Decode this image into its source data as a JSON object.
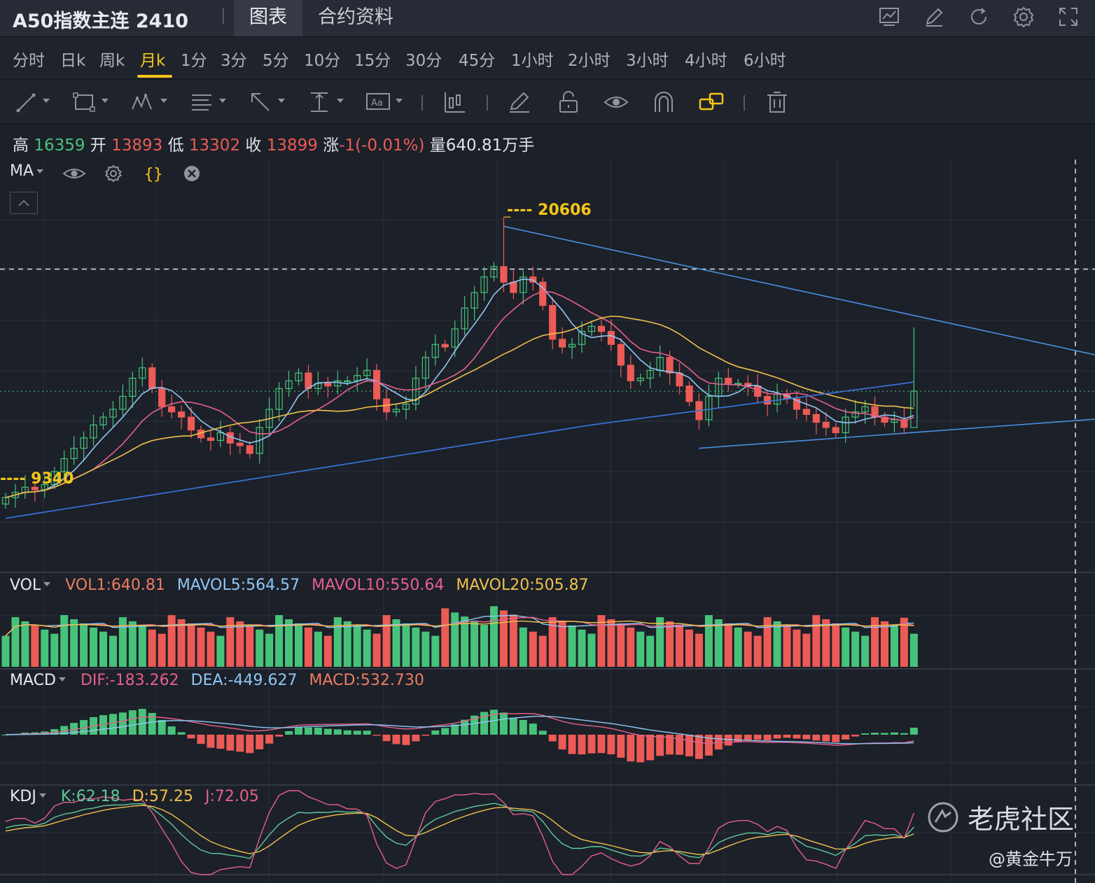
{
  "header": {
    "title": "A50指数主连 2410",
    "tabs": [
      {
        "label": "图表",
        "active": true
      },
      {
        "label": "合约资料",
        "active": false
      }
    ],
    "icons": [
      "chart-settings-icon",
      "edit-icon",
      "refresh-icon",
      "gear-icon",
      "fullscreen-icon"
    ]
  },
  "periods": [
    {
      "label": "分时"
    },
    {
      "label": "日k"
    },
    {
      "label": "周k"
    },
    {
      "label": "月k",
      "active": true
    },
    {
      "label": "1分"
    },
    {
      "label": "3分"
    },
    {
      "label": "5分"
    },
    {
      "label": "10分"
    },
    {
      "label": "15分"
    },
    {
      "label": "30分"
    },
    {
      "label": "45分"
    },
    {
      "label": "1小时"
    },
    {
      "label": "2小时"
    },
    {
      "label": "3小时"
    },
    {
      "label": "4小时"
    },
    {
      "label": "6小时"
    }
  ],
  "toolbar": {
    "tools": [
      "trend-line-icon",
      "rectangle-icon",
      "pattern-icon",
      "fib-icon",
      "arrow-icon",
      "measure-icon",
      "text-icon",
      "bar-style-icon",
      "pen-icon",
      "lock-icon",
      "eye-icon",
      "magnet-icon",
      "link-icon",
      "trash-icon"
    ]
  },
  "ohlc": {
    "high_label": "高",
    "high": "16359",
    "open_label": "开",
    "open": "13893",
    "low_label": "低",
    "low": "13302",
    "close_label": "收",
    "close": "13899",
    "change_label": "涨",
    "change": "-1(-0.01%)",
    "volume_label": "量",
    "volume": "640.81万手"
  },
  "ma_panel": {
    "label": "MA"
  },
  "vol_panel": {
    "label": "VOL",
    "vol1": "VOL1:640.81",
    "mavol5": "MAVOL5:564.57",
    "mavol10": "MAVOL10:550.64",
    "mavol20": "MAVOL20:505.87"
  },
  "macd_panel": {
    "label": "MACD",
    "dif": "DIF:-183.262",
    "dea": "DEA:-449.627",
    "macd": "MACD:532.730"
  },
  "kdj_panel": {
    "label": "KDJ",
    "k": "K:62.18",
    "d": "D:57.25",
    "j": "J:72.05"
  },
  "price_marks": {
    "high_mark": "---- 20606",
    "low_mark": "---- 9340"
  },
  "colors": {
    "up": "#47c27a",
    "down": "#ec5b56",
    "ma5": "#8fc7f5",
    "ma10": "#e6608a",
    "ma20": "#f0c14b",
    "ma60": "#3a78e0",
    "trendline": "#4a90e2",
    "accent": "#f5c518"
  },
  "chart_data": {
    "type": "candlestick",
    "timeframe": "月k",
    "closes": [
      9800,
      10000,
      10200,
      10100,
      10300,
      10800,
      11300,
      11700,
      12100,
      12600,
      12900,
      13200,
      13700,
      14400,
      14800,
      14000,
      13300,
      13100,
      12900,
      12400,
      12100,
      12000,
      12300,
      11900,
      11800,
      11500,
      12500,
      13200,
      14000,
      14300,
      14600,
      14000,
      14200,
      14100,
      14300,
      14300,
      14500,
      14700,
      13600,
      13100,
      13200,
      13400,
      14400,
      15200,
      15700,
      15600,
      16300,
      17100,
      17700,
      18300,
      18700,
      18100,
      17700,
      18300,
      18100,
      17200,
      15900,
      15600,
      15700,
      16200,
      16400,
      16200,
      15700,
      14900,
      14300,
      14400,
      14700,
      15200,
      14600,
      14100,
      13500,
      12800,
      13700,
      14400,
      14200,
      14200,
      14100,
      13700,
      13400,
      13800,
      13600,
      13200,
      13000,
      12700,
      12500,
      12300,
      12900,
      13100,
      13300,
      12900,
      12700,
      12800,
      12500,
      13900
    ],
    "ylim": [
      7000,
      22500
    ],
    "price_marks": [
      20606,
      9340
    ]
  }
}
